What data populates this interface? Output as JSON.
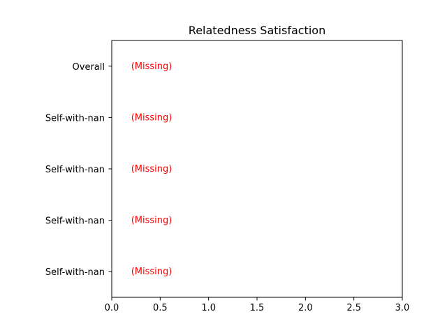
{
  "chart_data": {
    "type": "bar",
    "orientation": "horizontal",
    "title": "Relatedness Satisfaction",
    "xlabel": "",
    "ylabel": "",
    "categories": [
      "Overall",
      "Self-with-nan",
      "Self-with-nan",
      "Self-with-nan",
      "Self-with-nan"
    ],
    "values": [
      null,
      null,
      null,
      null,
      null
    ],
    "annotations": [
      "(Missing)",
      "(Missing)",
      "(Missing)",
      "(Missing)",
      "(Missing)"
    ],
    "annotation_color": "#ff0000",
    "xlim": [
      0.0,
      3.0
    ],
    "xticks": [
      "0.0",
      "0.5",
      "1.0",
      "1.5",
      "2.0",
      "2.5",
      "3.0"
    ],
    "grid": false
  }
}
